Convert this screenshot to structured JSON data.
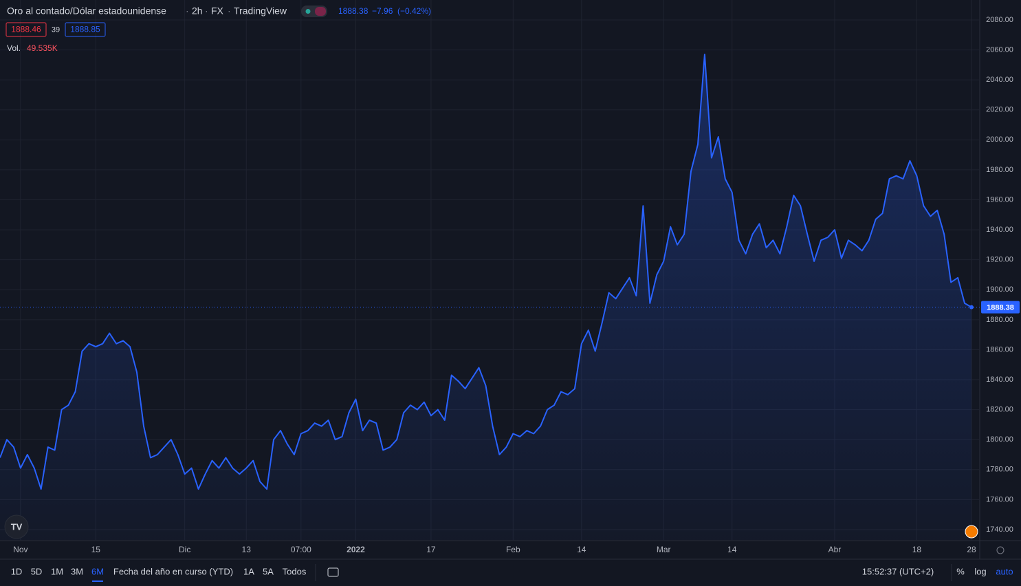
{
  "header": {
    "symbol": "Oro al contado/Dólar estadounidense",
    "interval": "2h",
    "exchange": "FX",
    "source": "TradingView",
    "change": "−7.96",
    "change_pct": "(−0.42%)",
    "bid": "1888.46",
    "spread": "39",
    "ask": "1888.85",
    "volume_label": "Vol.",
    "volume": "49.535K"
  },
  "chart_data": {
    "type": "line",
    "color": "#2962ff",
    "values": [
      1788,
      1800,
      1795,
      1781,
      1790,
      1781,
      1767,
      1795,
      1793,
      1820,
      1823,
      1832,
      1859,
      1864,
      1862,
      1864,
      1871,
      1864,
      1866,
      1862,
      1845,
      1809,
      1788,
      1790,
      1795,
      1800,
      1790,
      1777,
      1781,
      1767,
      1777,
      1786,
      1781,
      1788,
      1781,
      1777,
      1781,
      1786,
      1772,
      1767,
      1800,
      1806,
      1797,
      1790,
      1804,
      1806,
      1811,
      1809,
      1813,
      1800,
      1802,
      1818,
      1827,
      1806,
      1813,
      1811,
      1793,
      1795,
      1800,
      1818,
      1823,
      1820,
      1825,
      1816,
      1820,
      1813,
      1843,
      1839,
      1834,
      1841,
      1848,
      1836,
      1809,
      1790,
      1795,
      1804,
      1802,
      1806,
      1804,
      1809,
      1820,
      1823,
      1832,
      1830,
      1834,
      1864,
      1873,
      1859,
      1878,
      1898,
      1894,
      1901,
      1908,
      1896,
      1956,
      1891,
      1910,
      1919,
      1942,
      1930,
      1937,
      1979,
      1997,
      2057,
      1988,
      2002,
      1974,
      1965,
      1933,
      1924,
      1937,
      1944,
      1928,
      1933,
      1924,
      1942,
      1963,
      1956,
      1937,
      1919,
      1933,
      1935,
      1940,
      1921,
      1933,
      1930,
      1926,
      1933,
      1947,
      1951,
      1974,
      1976,
      1974,
      1986,
      1976,
      1956,
      1949,
      1953,
      1937,
      1905,
      1908,
      1891,
      1888.38
    ],
    "ylim": [
      1733.1,
      2093.3
    ],
    "yticks": [
      {
        "value": 1740,
        "label": "1740.00"
      },
      {
        "value": 1760,
        "label": "1760.00"
      },
      {
        "value": 1780,
        "label": "1780.00"
      },
      {
        "value": 1800,
        "label": "1800.00"
      },
      {
        "value": 1820,
        "label": "1820.00"
      },
      {
        "value": 1840,
        "label": "1840.00"
      },
      {
        "value": 1860,
        "label": "1860.00"
      },
      {
        "value": 1880,
        "label": "1880.00"
      },
      {
        "value": 1900,
        "label": "1900.00"
      },
      {
        "value": 1920,
        "label": "1920.00"
      },
      {
        "value": 1940,
        "label": "1940.00"
      },
      {
        "value": 1960,
        "label": "1960.00"
      },
      {
        "value": 1980,
        "label": "1980.00"
      },
      {
        "value": 2000,
        "label": "2000.00"
      },
      {
        "value": 2020,
        "label": "2020.00"
      },
      {
        "value": 2040,
        "label": "2040.00"
      },
      {
        "value": 2060,
        "label": "2060.00"
      },
      {
        "value": 2080,
        "label": "2080.00"
      }
    ],
    "xticks": [
      {
        "value": 3,
        "label": "Nov"
      },
      {
        "value": 14,
        "label": "15"
      },
      {
        "value": 27,
        "label": "Dic"
      },
      {
        "value": 36,
        "label": "13"
      },
      {
        "value": 44,
        "label": "07:00"
      },
      {
        "value": 52,
        "label": "2022"
      },
      {
        "value": 63,
        "label": "17"
      },
      {
        "value": 75,
        "label": "Feb"
      },
      {
        "value": 85,
        "label": "14"
      },
      {
        "value": 97,
        "label": "Mar"
      },
      {
        "value": 107,
        "label": "14"
      },
      {
        "value": 122,
        "label": "Abr"
      },
      {
        "value": 134,
        "label": "18"
      },
      {
        "value": 142,
        "label": "28"
      }
    ],
    "grid": true
  },
  "toolbar": {
    "ranges": [
      "1D",
      "5D",
      "1M",
      "3M",
      "6M",
      "Fecha del año en curso (YTD)",
      "1A",
      "5A",
      "Todos"
    ],
    "time": "15:52:37 (UTC+2)",
    "options": [
      "%",
      "log",
      "auto"
    ]
  }
}
